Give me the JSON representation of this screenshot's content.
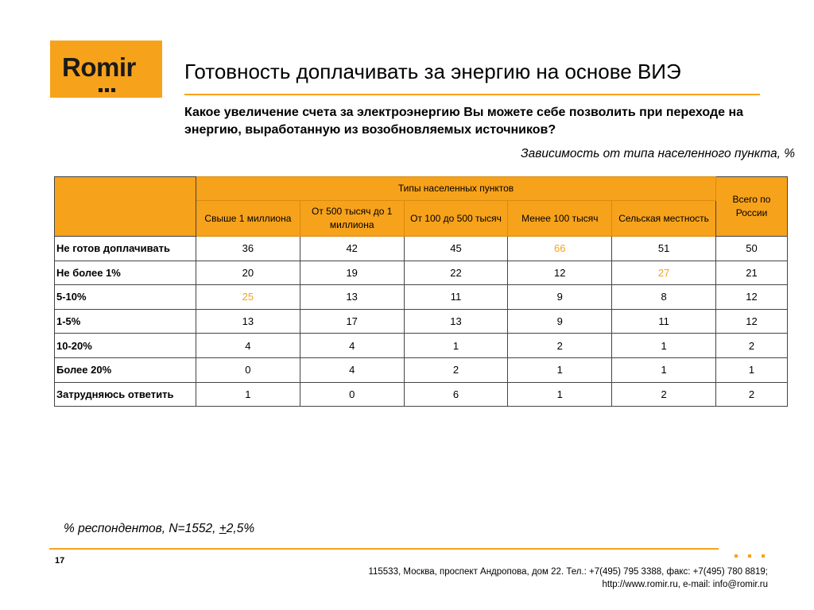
{
  "logo": {
    "text": "Romir",
    "bg_color": "#f7a21b"
  },
  "title": "Готовность доплачивать за энергию на основе ВИЭ",
  "question": "Какое увеличение счета за электроэнергию Вы можете себе позволить при переходе на энергию, выработанную из возобновляемых источников?",
  "subtitle": "Зависимость от типа населенного пункта, %",
  "table": {
    "group_header": "Типы населенных пунктов",
    "total_header": "Всего по России",
    "columns": [
      "Свыше 1 миллиона",
      "От 500 тысяч до 1 миллиона",
      "От 100 до 500 тысяч",
      "Менее 100 тысяч",
      "Сельская местность"
    ],
    "rows": [
      {
        "label": "Не готов доплачивать",
        "values": [
          "36",
          "42",
          "45",
          "66",
          "51"
        ],
        "total": "50"
      },
      {
        "label": "Не более 1%",
        "values": [
          "20",
          "19",
          "22",
          "12",
          "27"
        ],
        "total": "21"
      },
      {
        "label": "5-10%",
        "values": [
          "25",
          "13",
          "11",
          "9",
          "8"
        ],
        "total": "12"
      },
      {
        "label": "1-5%",
        "values": [
          "13",
          "17",
          "13",
          "9",
          "11"
        ],
        "total": "12"
      },
      {
        "label": "10-20%",
        "values": [
          "4",
          "4",
          "1",
          "2",
          "1"
        ],
        "total": "2"
      },
      {
        "label": "Более 20%",
        "values": [
          "0",
          "4",
          "2",
          "1",
          "1"
        ],
        "total": "1"
      },
      {
        "label": "Затрудняюсь ответить",
        "values": [
          "1",
          "0",
          "6",
          "1",
          "2"
        ],
        "total": "2"
      }
    ],
    "highlight_color": "#f7a21b"
  },
  "footnote": {
    "prefix": "% респондентов, N=1552, ",
    "plusminus": "+",
    "suffix": "2,5%"
  },
  "page_number": "17",
  "address": {
    "line1": "115533, Москва, проспект Андропова, дом 22.   Тел.: +7(495) 795 3388, факс: +7(495) 780 8819;",
    "line2": "http://www.romir.ru, e-mail: info@romir.ru"
  },
  "accent_color": "#f7a21b"
}
